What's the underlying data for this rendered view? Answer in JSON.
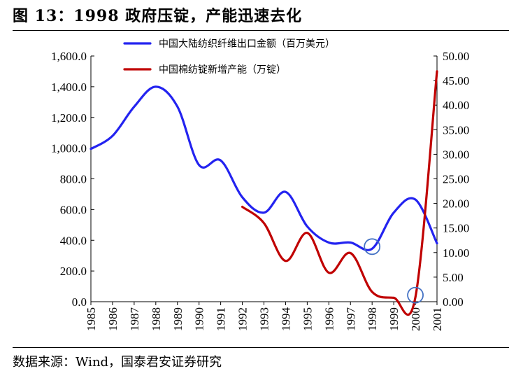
{
  "header": {
    "title": "图 13：1998 政府压锭，产能迅速去化",
    "source": "数据来源：Wind，国泰君安证券研究"
  },
  "chart_data": {
    "type": "line",
    "title": "图 13：1998 政府压锭，产能迅速去化",
    "categories": [
      "1985",
      "1986",
      "1987",
      "1988",
      "1989",
      "1990",
      "1991",
      "1992",
      "1993",
      "1994",
      "1995",
      "1996",
      "1997",
      "1998",
      "1999",
      "2000",
      "2001"
    ],
    "y_left": {
      "ylim": [
        0,
        1600
      ],
      "ticks": [
        "0.0",
        "200.0",
        "400.0",
        "600.0",
        "800.0",
        "1,000.0",
        "1,200.0",
        "1,400.0",
        "1,600.0"
      ]
    },
    "y_right": {
      "ylim": [
        0,
        50
      ],
      "ticks": [
        "0.00",
        "5.00",
        "10.00",
        "15.00",
        "20.00",
        "25.00",
        "30.00",
        "35.00",
        "40.00",
        "45.00",
        "50.00"
      ]
    },
    "series": [
      {
        "name": "中国大陆纺织纤维出口金额（百万美元）",
        "axis": "left",
        "color": "#2323f0",
        "values": [
          995,
          1080,
          1270,
          1400,
          1270,
          890,
          920,
          680,
          580,
          715,
          490,
          385,
          385,
          345,
          580,
          665,
          380
        ]
      },
      {
        "name": "中国棉纺锭新增产能（万锭）",
        "axis": "right",
        "color": "#c00000",
        "values": [
          null,
          null,
          null,
          null,
          null,
          null,
          null,
          19.3,
          16.0,
          8.3,
          14.0,
          5.9,
          9.9,
          2.0,
          0.8,
          0.9,
          46.9
        ]
      }
    ],
    "annotations": [
      {
        "type": "circle",
        "x": "1998",
        "series": 0
      },
      {
        "type": "circle",
        "x": "2000",
        "series": 1
      }
    ],
    "legend": "top"
  }
}
